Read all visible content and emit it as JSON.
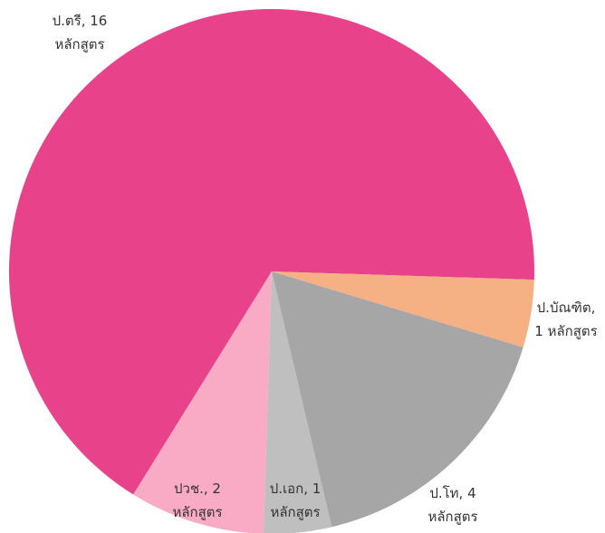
{
  "chart_data": {
    "type": "pie",
    "values": [
      16,
      1,
      4,
      1,
      2
    ],
    "value_labels": [
      [
        "ป.ตรี, 16",
        "หลักสูตร"
      ],
      [
        "ป.บัณฑิต,",
        "1 หลักสูตร"
      ],
      [
        "ป.โท, 4",
        "หลักสูตร"
      ],
      [
        "ป.เอก, 1",
        "หลักสูตร"
      ],
      [
        "ปวช., 2",
        "หลักสูตร"
      ]
    ],
    "colors": [
      "#e8438a",
      "#f5b183",
      "#a6a6a6",
      "#bfbfbf",
      "#f9aac5"
    ]
  }
}
